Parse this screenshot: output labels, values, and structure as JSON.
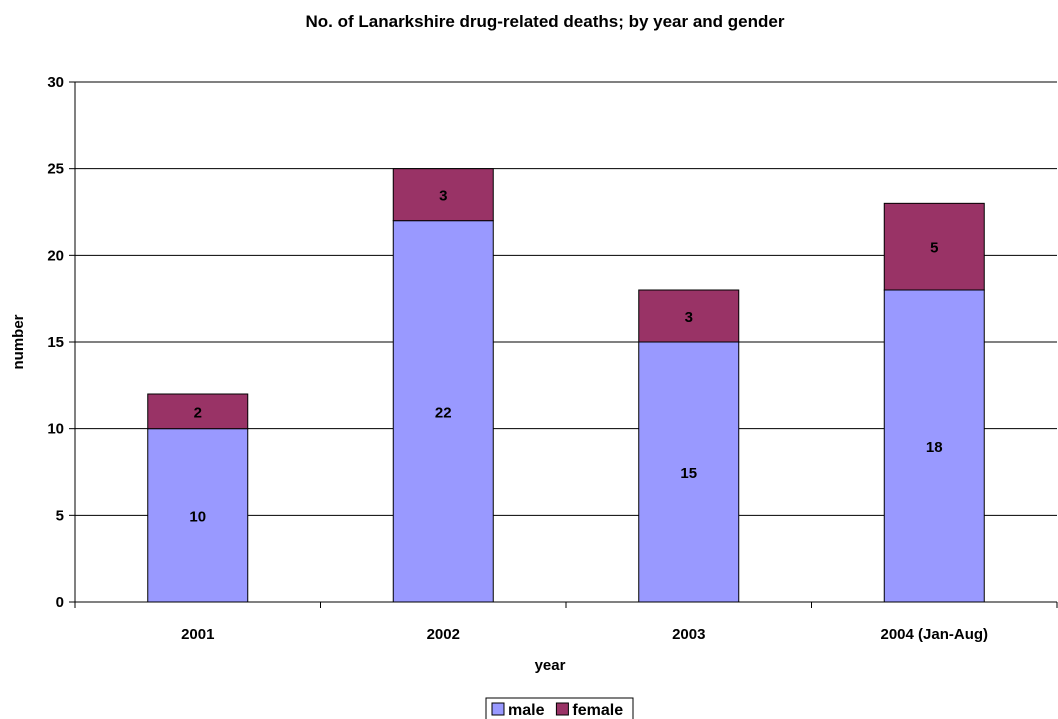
{
  "chart_data": {
    "type": "bar",
    "stacked": true,
    "title": "No. of Lanarkshire drug-related deaths; by year and gender",
    "xlabel": "year",
    "ylabel": "number",
    "categories": [
      "2001",
      "2002",
      "2003",
      "2004 (Jan-Aug)"
    ],
    "series": [
      {
        "name": "male",
        "values": [
          10,
          22,
          15,
          18
        ],
        "color": "#9999FF"
      },
      {
        "name": "female",
        "values": [
          2,
          3,
          3,
          5
        ],
        "color": "#993366"
      }
    ],
    "ylim": [
      0,
      30
    ],
    "yticks": [
      0,
      5,
      10,
      15,
      20,
      25,
      30
    ],
    "grid": true,
    "legend_position": "bottom",
    "data_labels": true
  }
}
